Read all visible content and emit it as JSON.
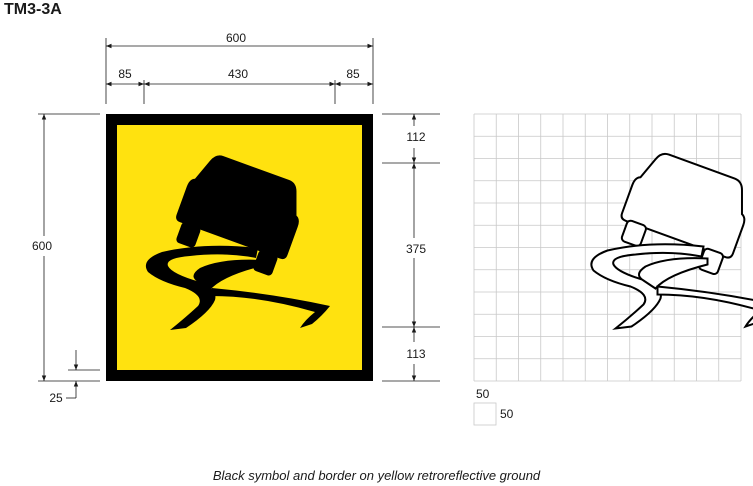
{
  "title": "TM3-3A",
  "caption": "Black symbol and border on yellow retroreflective ground",
  "colors": {
    "ground": "#ffe20f",
    "symbol": "#000000",
    "grid": "#c8c8c8",
    "dim": "#1a1a1a"
  },
  "dimensions": {
    "overall_width": "600",
    "left_margin": "85",
    "symbol_width": "430",
    "right_margin": "85",
    "overall_height": "600",
    "top_margin": "112",
    "symbol_height": "375",
    "bottom_margin": "113",
    "border": "25"
  },
  "grid_scale": {
    "width": "50",
    "height": "50"
  },
  "icons": {
    "symbol": "slippery-road-car-icon"
  }
}
